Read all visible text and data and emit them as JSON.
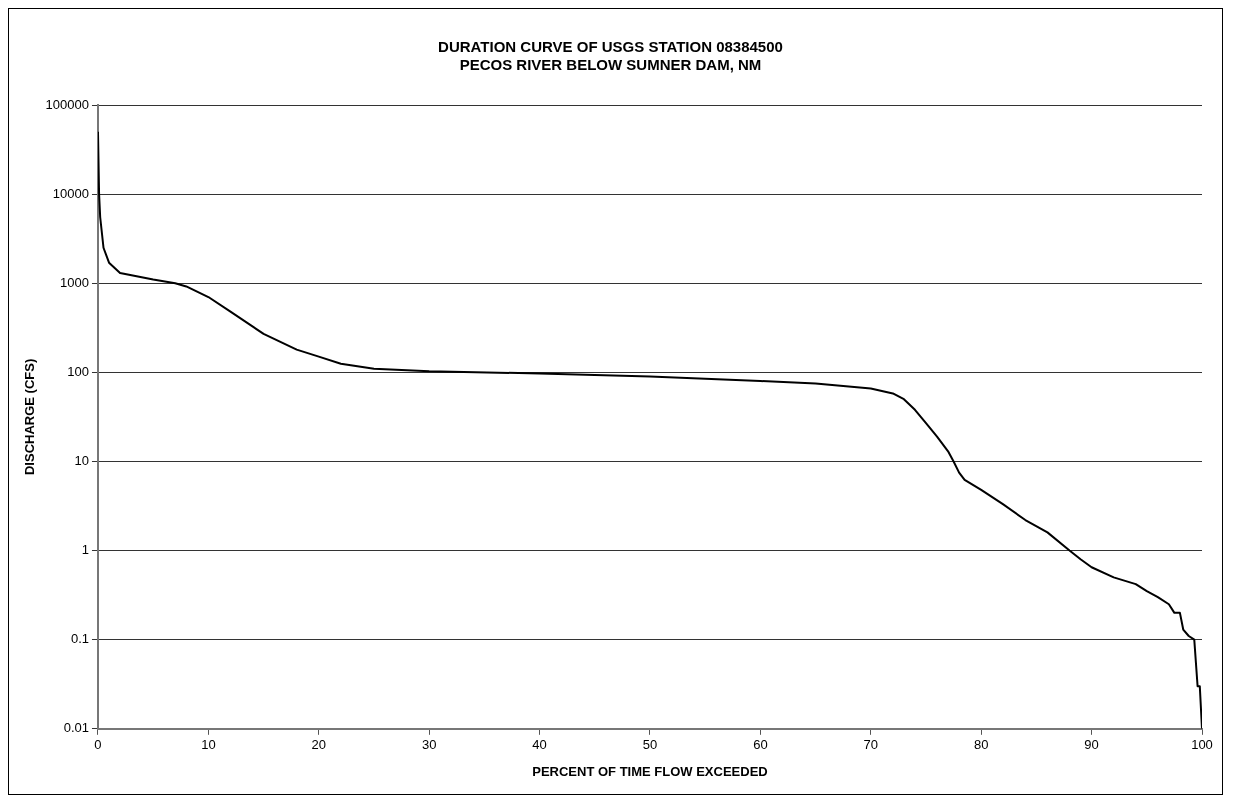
{
  "chart_data": {
    "type": "line",
    "title": "DURATION CURVE OF USGS STATION 08384500\nPECOS RIVER BELOW SUMNER DAM, NM",
    "xlabel": "PERCENT OF TIME FLOW EXCEEDED",
    "ylabel": "DISCHARGE (CFS)",
    "xlim": [
      0,
      100
    ],
    "xticks": [
      0,
      10,
      20,
      30,
      40,
      50,
      60,
      70,
      80,
      90,
      100
    ],
    "ylim": [
      0.01,
      100000
    ],
    "yticks": [
      0.01,
      0.1,
      1,
      10,
      100,
      1000,
      10000,
      100000
    ],
    "log": "y",
    "grid": "y",
    "legend": false,
    "marker": "none",
    "line_style": "solid",
    "series": [
      {
        "color": "#000000",
        "x": [
          0,
          0.1,
          0.2,
          0.5,
          1,
          2,
          5,
          7,
          8,
          10,
          12,
          15,
          18,
          20,
          22,
          25,
          30,
          40,
          50,
          60,
          65,
          70,
          72,
          73,
          74,
          75,
          76,
          77,
          77.5,
          78,
          78.5,
          80,
          82,
          84,
          86,
          88,
          89,
          90,
          92,
          94,
          95,
          96,
          97,
          97.5,
          98,
          98.3,
          98.8,
          99.3,
          99.6,
          99.8,
          100
        ],
        "values": [
          50000,
          10000,
          5500,
          2500,
          1700,
          1300,
          1100,
          1000,
          920,
          700,
          480,
          270,
          180,
          150,
          125,
          110,
          103,
          97,
          90,
          80,
          75,
          66,
          58,
          50,
          38,
          27,
          19,
          13,
          10,
          7.5,
          6.2,
          4.8,
          3.3,
          2.2,
          1.6,
          1.0,
          0.8,
          0.65,
          0.5,
          0.42,
          0.35,
          0.3,
          0.25,
          0.2,
          0.2,
          0.13,
          0.11,
          0.1,
          0.03,
          0.03,
          0.01
        ]
      }
    ]
  }
}
